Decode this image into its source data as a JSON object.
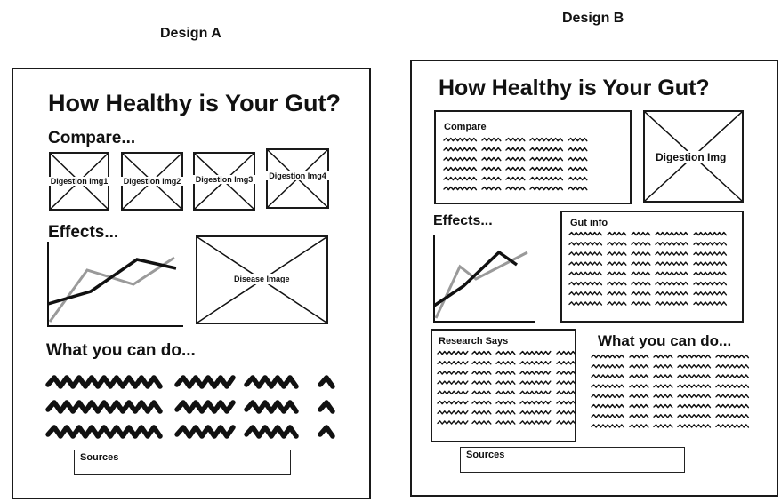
{
  "design_a": {
    "heading": "Design A",
    "title": "How Healthy is Your Gut?",
    "compare_label": "Compare...",
    "images": [
      "Digestion Img1",
      "Digestion Img2",
      "Digestion Img3",
      "Digestion Img4"
    ],
    "effects_label": "Effects...",
    "disease_image": "Disease Image",
    "what_label": "What you can do...",
    "sources_label": "Sources"
  },
  "design_b": {
    "heading": "Design B",
    "title": "How Healthy is Your Gut?",
    "compare_label": "Compare",
    "digestion_image": "Digestion Img",
    "effects_label": "Effects...",
    "gut_info_label": "Gut info",
    "research_label": "Research Says",
    "what_label": "What you can do...",
    "sources_label": "Sources"
  },
  "colors": {
    "ink": "#111111",
    "chart_line_dark": "#111111",
    "chart_line_light": "#9a9a9a"
  }
}
